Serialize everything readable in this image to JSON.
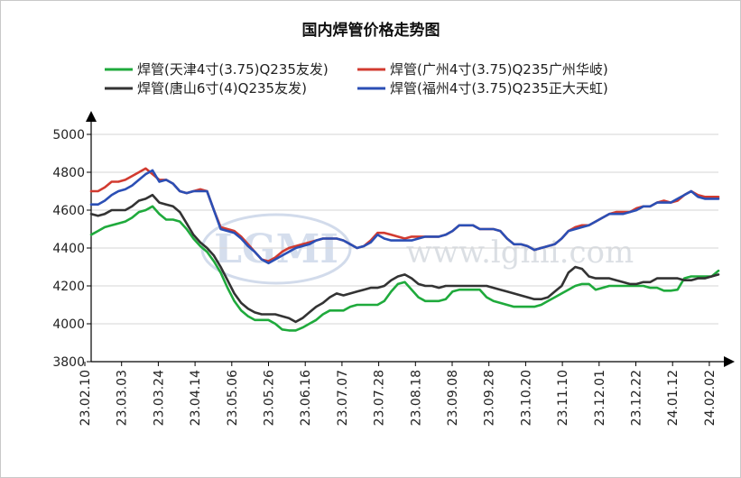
{
  "chart_data": {
    "type": "line",
    "title": "国内焊管价格走势图",
    "watermark": {
      "logo": "LGMI",
      "url": "www.lgmi.com"
    },
    "ylim": [
      3800,
      5000
    ],
    "yticks": [
      3800,
      4000,
      4200,
      4400,
      4600,
      4800,
      5000
    ],
    "xticks": [
      "23.02.10",
      "23.03.03",
      "23.03.24",
      "23.04.14",
      "23.05.06",
      "23.05.26",
      "23.06.16",
      "23.07.07",
      "23.07.28",
      "23.08.18",
      "23.09.08",
      "23.09.28",
      "23.10.20",
      "23.11.10",
      "23.12.01",
      "23.12.22",
      "24.01.12",
      "24.02.02"
    ],
    "grid": true,
    "legend_position": "top",
    "series": [
      {
        "name": "焊管(天津4寸(3.75)Q235友发)",
        "color": "#1faa3c",
        "values": [
          4470,
          4490,
          4510,
          4520,
          4530,
          4540,
          4560,
          4590,
          4600,
          4620,
          4580,
          4550,
          4550,
          4540,
          4500,
          4450,
          4410,
          4380,
          4330,
          4270,
          4190,
          4120,
          4070,
          4040,
          4020,
          4020,
          4020,
          4000,
          3970,
          3965,
          3965,
          3980,
          4000,
          4020,
          4050,
          4070,
          4070,
          4070,
          4090,
          4100,
          4100,
          4100,
          4100,
          4120,
          4170,
          4210,
          4220,
          4180,
          4140,
          4120,
          4120,
          4120,
          4130,
          4170,
          4180,
          4180,
          4180,
          4180,
          4140,
          4120,
          4110,
          4100,
          4090,
          4090,
          4090,
          4090,
          4100,
          4120,
          4140,
          4160,
          4180,
          4200,
          4210,
          4210,
          4180,
          4190,
          4200,
          4200,
          4200,
          4200,
          4200,
          4200,
          4190,
          4190,
          4175,
          4175,
          4180,
          4240,
          4250,
          4250,
          4250,
          4250,
          4280
        ]
      },
      {
        "name": "焊管(广州4寸(3.75)Q235广州华岐)",
        "color": "#d23b30",
        "values": [
          4700,
          4700,
          4720,
          4750,
          4750,
          4760,
          4780,
          4800,
          4820,
          4790,
          4760,
          4760,
          4740,
          4700,
          4690,
          4700,
          4710,
          4700,
          4600,
          4510,
          4500,
          4490,
          4460,
          4420,
          4380,
          4340,
          4330,
          4350,
          4380,
          4400,
          4410,
          4420,
          4430,
          4440,
          4450,
          4450,
          4450,
          4440,
          4420,
          4400,
          4410,
          4440,
          4480,
          4480,
          4470,
          4460,
          4450,
          4460,
          4460,
          4460,
          4460,
          4460,
          4470,
          4490,
          4520,
          4520,
          4520,
          4500,
          4500,
          4500,
          4490,
          4450,
          4420,
          4420,
          4410,
          4390,
          4400,
          4410,
          4420,
          4450,
          4490,
          4510,
          4520,
          4520,
          4540,
          4560,
          4580,
          4590,
          4590,
          4590,
          4610,
          4620,
          4620,
          4640,
          4650,
          4640,
          4650,
          4680,
          4700,
          4680,
          4670,
          4670,
          4670
        ]
      },
      {
        "name": "焊管(唐山6寸(4)Q235友发)",
        "color": "#333333",
        "values": [
          4580,
          4570,
          4580,
          4600,
          4600,
          4600,
          4620,
          4650,
          4660,
          4680,
          4640,
          4630,
          4620,
          4590,
          4530,
          4470,
          4430,
          4400,
          4360,
          4300,
          4230,
          4160,
          4110,
          4080,
          4060,
          4050,
          4050,
          4050,
          4040,
          4030,
          4010,
          4030,
          4060,
          4090,
          4110,
          4140,
          4160,
          4150,
          4160,
          4170,
          4180,
          4190,
          4190,
          4200,
          4230,
          4250,
          4260,
          4240,
          4210,
          4200,
          4200,
          4190,
          4200,
          4200,
          4200,
          4200,
          4200,
          4200,
          4200,
          4190,
          4180,
          4170,
          4160,
          4150,
          4140,
          4130,
          4130,
          4140,
          4170,
          4200,
          4270,
          4300,
          4290,
          4250,
          4240,
          4240,
          4240,
          4230,
          4220,
          4210,
          4210,
          4220,
          4220,
          4240,
          4240,
          4240,
          4240,
          4230,
          4230,
          4240,
          4240,
          4250,
          4260
        ]
      },
      {
        "name": "焊管(福州4寸(3.75)Q235正大天虹)",
        "color": "#2b4fb5",
        "values": [
          4630,
          4630,
          4650,
          4680,
          4700,
          4710,
          4730,
          4760,
          4790,
          4810,
          4750,
          4760,
          4740,
          4700,
          4690,
          4700,
          4700,
          4700,
          4600,
          4500,
          4490,
          4480,
          4450,
          4410,
          4380,
          4340,
          4320,
          4340,
          4360,
          4380,
          4400,
          4410,
          4420,
          4440,
          4450,
          4450,
          4450,
          4440,
          4420,
          4400,
          4410,
          4430,
          4470,
          4450,
          4440,
          4440,
          4440,
          4440,
          4450,
          4460,
          4460,
          4460,
          4470,
          4490,
          4520,
          4520,
          4520,
          4500,
          4500,
          4500,
          4490,
          4450,
          4420,
          4420,
          4410,
          4390,
          4400,
          4410,
          4420,
          4450,
          4490,
          4500,
          4510,
          4520,
          4540,
          4560,
          4580,
          4580,
          4580,
          4590,
          4600,
          4620,
          4620,
          4640,
          4640,
          4640,
          4660,
          4680,
          4700,
          4670,
          4660,
          4660,
          4660
        ]
      }
    ]
  }
}
